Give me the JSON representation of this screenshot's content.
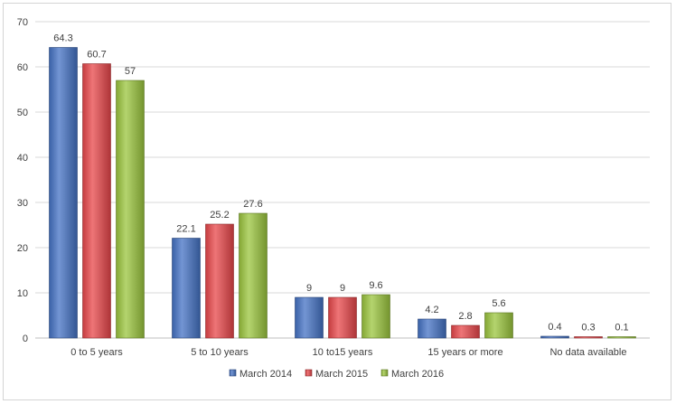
{
  "chart_data": {
    "type": "bar",
    "categories": [
      "0 to 5 years",
      "5 to 10 years",
      "10 to15 years",
      "15 years or more",
      "No data available"
    ],
    "series": [
      {
        "name": "March 2014",
        "values": [
          64.3,
          22.1,
          9,
          4.2,
          0.4
        ],
        "color": "#4472c4"
      },
      {
        "name": "March 2015",
        "values": [
          60.7,
          25.2,
          9,
          2.8,
          0.3
        ],
        "color": "#e8474a"
      },
      {
        "name": "March 2016",
        "values": [
          57,
          27.6,
          9.6,
          5.6,
          0.1
        ],
        "color": "#9bc53d"
      }
    ],
    "data_labels": [
      [
        "64.3",
        "22.1",
        "9",
        "4.2",
        "0.4"
      ],
      [
        "60.7",
        "25.2",
        "9",
        "2.8",
        "0.3"
      ],
      [
        "57",
        "27.6",
        "9.6",
        "5.6",
        "0.1"
      ]
    ],
    "y_ticks": [
      "0",
      "10",
      "20",
      "30",
      "40",
      "50",
      "60",
      "70"
    ],
    "ylim": [
      0,
      70
    ],
    "grid": true,
    "legend_position": "bottom",
    "title": "",
    "xlabel": "",
    "ylabel": ""
  }
}
